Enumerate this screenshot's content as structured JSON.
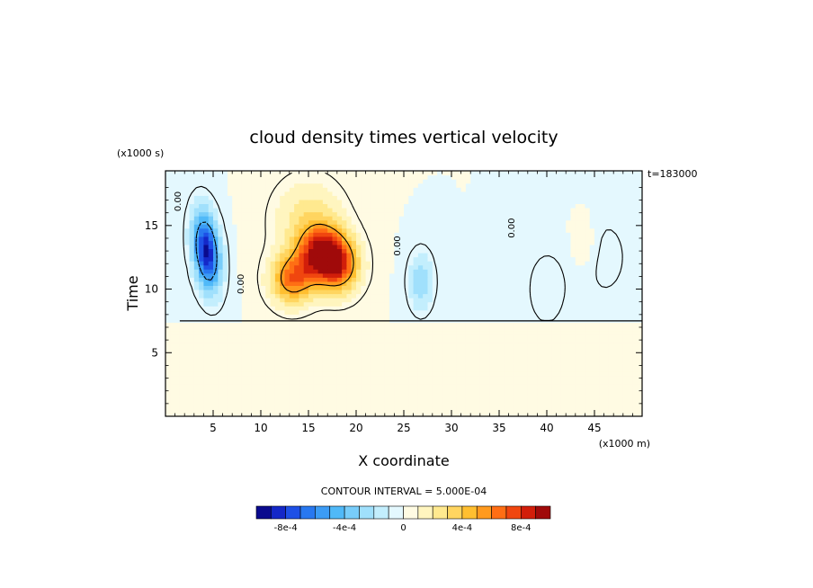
{
  "chart_data": {
    "type": "heatmap",
    "title": "cloud density times vertical velocity",
    "xlabel": "X coordinate",
    "ylabel": "Time",
    "x_units": "(x1000 m)",
    "y_units": "(x1000 s)",
    "timestamp": "t=183000",
    "xlim": [
      0,
      50
    ],
    "ylim": [
      0,
      19.3
    ],
    "xticks": [
      5,
      10,
      15,
      20,
      25,
      30,
      35,
      40,
      45
    ],
    "yticks": [
      5,
      10,
      15
    ],
    "xtick_labels": [
      "5",
      "10",
      "15",
      "20",
      "25",
      "30",
      "35",
      "40",
      "45"
    ],
    "ytick_labels": [
      "5",
      "10",
      "15"
    ],
    "contour_interval_text": "CONTOUR INTERVAL = 5.000E-04",
    "contour_labels": [
      {
        "text": "0.00",
        "x": 1.6,
        "y": 16.9
      },
      {
        "text": "0.00",
        "x": 8.2,
        "y": 10.4
      },
      {
        "text": "0.00",
        "x": 24.6,
        "y": 13.4
      },
      {
        "text": "0.00",
        "x": 36.6,
        "y": 14.8
      }
    ],
    "colorbar": {
      "levels": [
        -0.001,
        -0.0009,
        -0.0008,
        -0.0007,
        -0.0006,
        -0.0005,
        -0.0004,
        -0.0003,
        -0.0002,
        -0.0001,
        0,
        0.0001,
        0.0002,
        0.0003,
        0.0004,
        0.0005,
        0.0006,
        0.0007,
        0.0008,
        0.0009,
        0.001
      ],
      "colors": [
        "#0a0a8e",
        "#1428c8",
        "#1e50e6",
        "#2878f0",
        "#3c9cf5",
        "#50b9f8",
        "#78cdfa",
        "#a0e0fc",
        "#c3eefd",
        "#e4f8fe",
        "#fffbe3",
        "#fff5bf",
        "#ffe98f",
        "#ffd560",
        "#ffbf30",
        "#ff9a1e",
        "#ff6e14",
        "#f0460f",
        "#d21e0a",
        "#a00a0a"
      ],
      "tick_labels": [
        {
          "text": "-8e-4",
          "value": -0.0008
        },
        {
          "text": "-4e-4",
          "value": -0.0004
        },
        {
          "text": "0",
          "value": 0
        },
        {
          "text": "4e-4",
          "value": 0.0004
        },
        {
          "text": "8e-4",
          "value": 0.0008
        }
      ]
    },
    "features": [
      {
        "value": -0.00092,
        "x": 4.3,
        "y": 13.0,
        "sx": 0.95,
        "sy": 2.1,
        "tilt": -0.12
      },
      {
        "value": -0.00028,
        "x": 26.8,
        "y": 10.6,
        "sx": 0.9,
        "sy": 1.6,
        "tilt": 0
      },
      {
        "value": -0.0001,
        "x": 40.0,
        "y": 10.0,
        "sx": 1.5,
        "sy": 2.2,
        "tilt": 0
      },
      {
        "value": -8e-05,
        "x": 46.0,
        "y": 12.5,
        "sx": 2.0,
        "sy": 2.5,
        "tilt": 0
      },
      {
        "value": 0.00062,
        "x": 13.3,
        "y": 10.8,
        "sx": 1.6,
        "sy": 1.4,
        "tilt": 0
      },
      {
        "value": 0.00085,
        "x": 16.4,
        "y": 12.8,
        "sx": 1.7,
        "sy": 1.5,
        "tilt": 0
      },
      {
        "value": 0.0006,
        "x": 18.3,
        "y": 11.8,
        "sx": 1.5,
        "sy": 1.5,
        "tilt": 0
      },
      {
        "value": 0.00025,
        "x": 15.0,
        "y": 15.5,
        "sx": 2.5,
        "sy": 2.2,
        "tilt": 0
      },
      {
        "value": 8e-05,
        "x": 44.0,
        "y": 13.5,
        "sx": 1.0,
        "sy": 1.6,
        "tilt": 0
      }
    ],
    "cloud_region": {
      "base_y": 7.5,
      "value_below": 0
    }
  }
}
